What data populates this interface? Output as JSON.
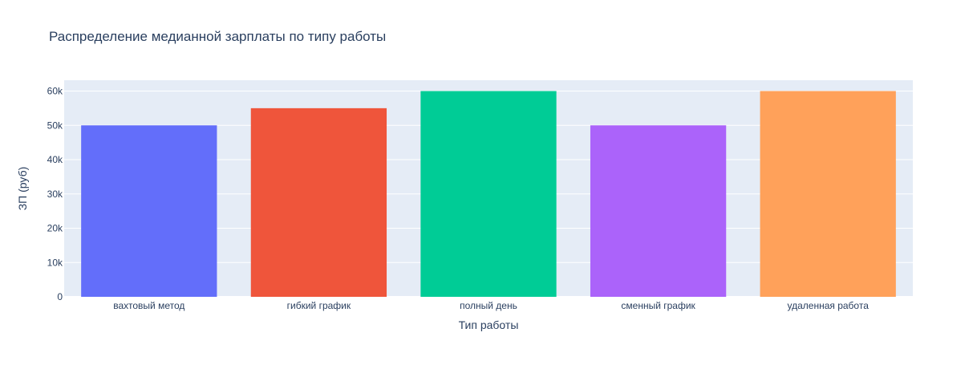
{
  "chart_data": {
    "type": "bar",
    "title": "Распределение медианной зарплаты по типу работы",
    "xlabel": "Тип работы",
    "ylabel": "ЗП (руб)",
    "categories": [
      "вахтовый метод",
      "гибкий график",
      "полный день",
      "сменный график",
      "удаленная работа"
    ],
    "values": [
      50000,
      55000,
      60000,
      50000,
      60000
    ],
    "colors": [
      "#636efa",
      "#EF553B",
      "#00cc96",
      "#ab63fa",
      "#FFA15A"
    ],
    "ylim": [
      0,
      63158
    ],
    "yticks": [
      0,
      10000,
      20000,
      30000,
      40000,
      50000,
      60000
    ],
    "ytick_labels": [
      "0",
      "10k",
      "20k",
      "30k",
      "40k",
      "50k",
      "60k"
    ],
    "grid": true,
    "plot_bgcolor": "#E5ECF6",
    "gridcolor": "#ffffff",
    "text_color": "#2a3f5f"
  }
}
